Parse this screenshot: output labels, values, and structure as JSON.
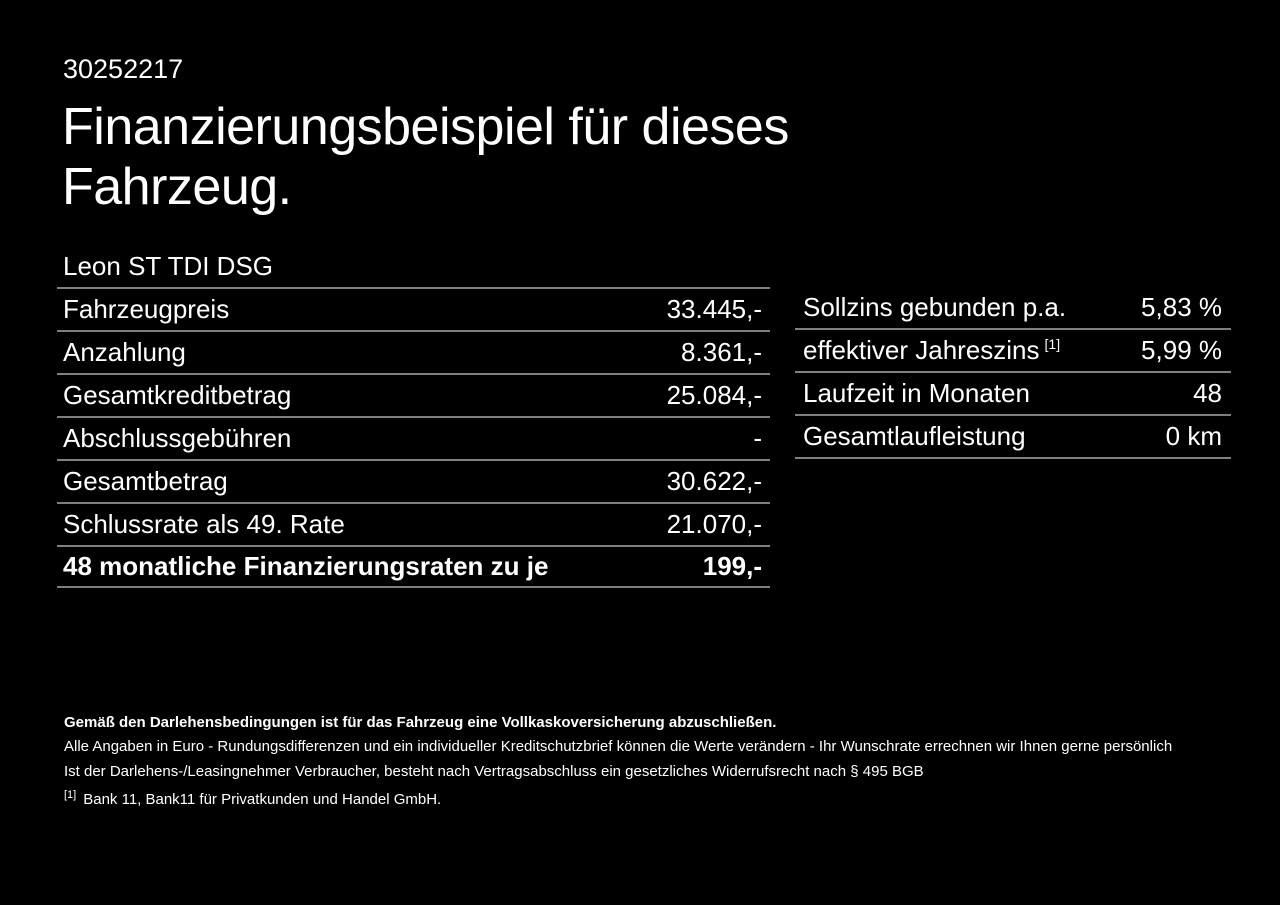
{
  "page": {
    "background": "#000000",
    "text_color": "#ffffff",
    "divider_color": "#7f7f7f"
  },
  "header": {
    "id_number": "30252217",
    "title_line1": "Finanzierungsbeispiel für dieses",
    "title_line2": "Fahrzeug.",
    "vehicle_model": "Leon ST TDI DSG"
  },
  "finance_table": {
    "rows": [
      {
        "label": "Fahrzeugpreis",
        "value": "33.445,-"
      },
      {
        "label": "Anzahlung",
        "value": "8.361,-"
      },
      {
        "label": "Gesamtkreditbetrag",
        "value": "25.084,-"
      },
      {
        "label": "Abschlussgebühren",
        "value": "-"
      },
      {
        "label": "Gesamtbetrag",
        "value": "30.622,-"
      },
      {
        "label": "Schlussrate als 49. Rate",
        "value": "21.070,-"
      },
      {
        "label": "48 monatliche Finanzierungsraten zu je",
        "value": "199,-",
        "bold": true
      }
    ]
  },
  "conditions_table": {
    "rows": [
      {
        "label": "Sollzins gebunden p.a.",
        "value": "5,83 %"
      },
      {
        "label": "effektiver Jahreszins",
        "footnote_marker": "[1]",
        "value": "5,99 %"
      },
      {
        "label": "Laufzeit in Monaten",
        "value": "48"
      },
      {
        "label": "Gesamtlaufleistung",
        "value": "0 km"
      }
    ]
  },
  "footer": {
    "insurance_note": "Gemäß den Darlehensbedingungen ist für das Fahrzeug eine Vollkaskoversicherung abzuschließen.",
    "disclaimer_line1": "Alle Angaben in Euro - Rundungsdifferenzen und ein individueller Kreditschutzbrief können die Werte verändern - Ihr Wunschrate errechnen wir Ihnen gerne persönlich",
    "disclaimer_line2": "Ist der Darlehens-/Leasingnehmer Verbraucher, besteht nach Vertragsabschluss ein gesetzliches Widerrufsrecht nach § 495 BGB",
    "footnote_marker": "[1]",
    "footnote_text": "Bank 11, Bank11 für Privatkunden und Handel GmbH."
  }
}
